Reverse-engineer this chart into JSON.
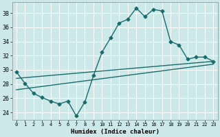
{
  "title": "",
  "xlabel": "Humidex (Indice chaleur)",
  "bg_color": "#cce8e8",
  "line_color": "#1a6b6b",
  "grid_color": "#ffffff",
  "xlim": [
    -0.5,
    23.5
  ],
  "ylim": [
    23.0,
    39.5
  ],
  "xticks": [
    0,
    1,
    2,
    3,
    4,
    5,
    6,
    7,
    8,
    9,
    10,
    11,
    12,
    13,
    14,
    15,
    16,
    17,
    18,
    19,
    20,
    21,
    22,
    23
  ],
  "yticks": [
    24,
    26,
    28,
    30,
    32,
    34,
    36,
    38
  ],
  "line1_x": [
    0,
    1,
    2,
    3,
    4,
    5,
    6,
    7,
    8,
    9,
    10,
    11,
    12,
    13,
    14,
    15,
    16,
    17,
    18,
    19,
    20,
    21,
    22,
    23
  ],
  "line1_y": [
    29.7,
    28.1,
    26.7,
    26.1,
    25.6,
    25.2,
    25.6,
    23.5,
    25.5,
    29.2,
    32.5,
    34.5,
    36.6,
    37.1,
    38.7,
    37.5,
    38.5,
    38.3,
    34.0,
    33.5,
    31.5,
    31.8,
    31.8,
    31.2
  ],
  "line2_x": [
    0,
    23
  ],
  "line2_y": [
    28.8,
    31.2
  ],
  "line3_x": [
    0,
    23
  ],
  "line3_y": [
    27.2,
    30.8
  ],
  "marker": "D",
  "markersize": 2.5,
  "linewidth": 1.0
}
